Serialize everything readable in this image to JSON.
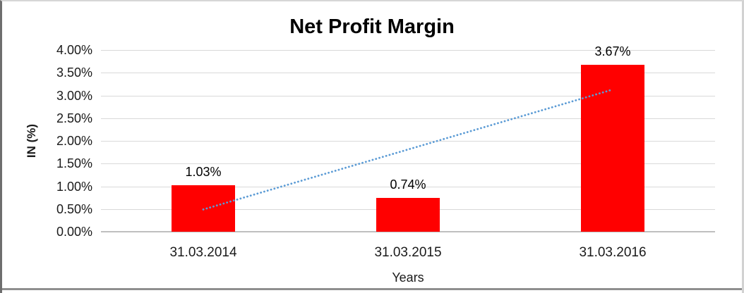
{
  "chart_data": {
    "type": "bar",
    "title": "Net Profit Margin",
    "xlabel": "Years",
    "ylabel": "IN (%)",
    "categories": [
      "31.03.2014",
      "31.03.2015",
      "31.03.2016"
    ],
    "series": [
      {
        "name": "Net Profit Margin",
        "values": [
          1.03,
          0.74,
          3.67
        ]
      }
    ],
    "data_labels": [
      "1.03%",
      "0.74%",
      "3.67%"
    ],
    "ylim": [
      0,
      4
    ],
    "ytick_step": 0.5,
    "ytick_labels": [
      "0.00%",
      "0.50%",
      "1.00%",
      "1.50%",
      "2.00%",
      "2.50%",
      "3.00%",
      "3.50%",
      "4.00%"
    ],
    "grid": true,
    "legend": "none",
    "trendline": {
      "type": "linear",
      "style": "dotted",
      "start_value": 0.49,
      "end_value": 3.13,
      "color": "#5b9bd5"
    },
    "colors": {
      "bar": "#ff0000",
      "gridline": "#d9d9d9",
      "axis_line": "#bfbfbf",
      "text": "#1a1a1a"
    }
  }
}
